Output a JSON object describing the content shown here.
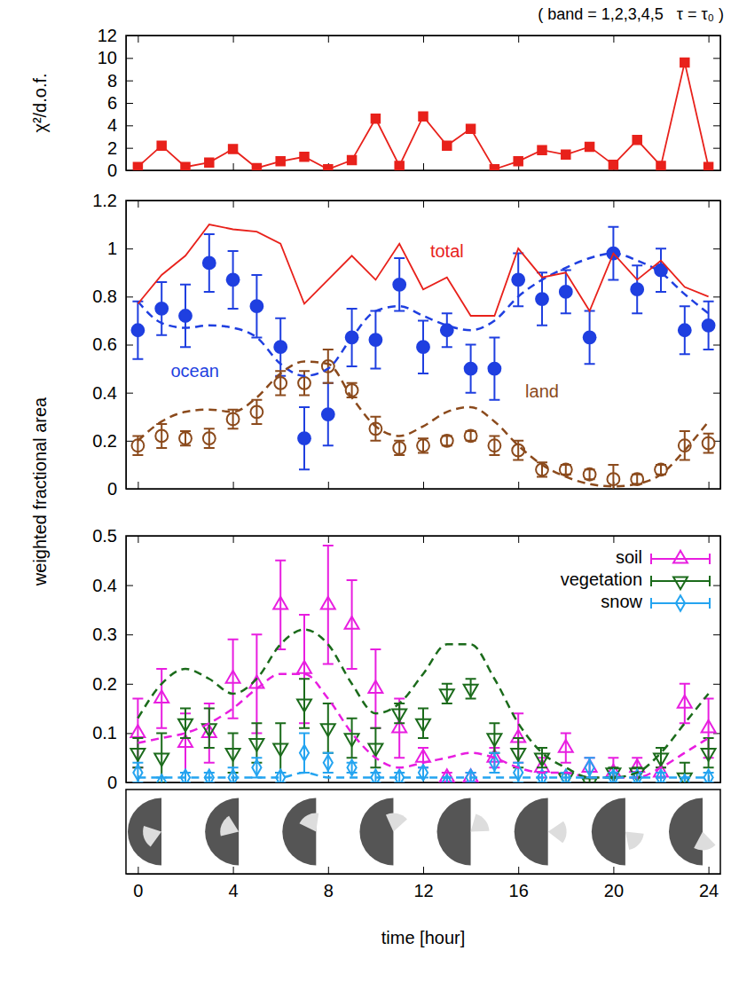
{
  "chart_data": [
    {
      "type": "line",
      "title": "( band = 1,2,3,4,5   τ = τ₀ )",
      "ylabel": "χ²/d.o.f.",
      "x": [
        0,
        1,
        2,
        3,
        4,
        5,
        6,
        7,
        8,
        9,
        10,
        11,
        12,
        13,
        14,
        15,
        16,
        17,
        18,
        19,
        20,
        21,
        22,
        23,
        24
      ],
      "xlim": [
        -0.5,
        24.5
      ],
      "xticks": [
        0,
        4,
        8,
        12,
        16,
        20,
        24
      ],
      "ylim": [
        0,
        12
      ],
      "yticks": [
        0,
        2,
        4,
        6,
        8,
        10,
        12
      ],
      "tick_labels": "y",
      "grid": false,
      "series": [
        {
          "color": "#e8211b",
          "marker": "square",
          "line_style": "solid",
          "values": [
            0.3,
            2.2,
            0.3,
            0.7,
            1.9,
            0.2,
            0.8,
            1.2,
            0.1,
            0.9,
            4.6,
            0.4,
            4.8,
            2.2,
            3.7,
            0.1,
            0.8,
            1.8,
            1.4,
            2.1,
            0.5,
            2.7,
            0.4,
            9.6,
            0.3
          ]
        }
      ]
    },
    {
      "type": "line",
      "ylabel": "weighted fractional area",
      "x": [
        0,
        1,
        2,
        3,
        4,
        5,
        6,
        7,
        8,
        9,
        10,
        11,
        12,
        13,
        14,
        15,
        16,
        17,
        18,
        19,
        20,
        21,
        22,
        23,
        24
      ],
      "xlim": [
        -0.5,
        24.5
      ],
      "xticks": [
        0,
        4,
        8,
        12,
        16,
        20,
        24
      ],
      "ylim": [
        0,
        1.2
      ],
      "yticks": [
        0,
        0.2,
        0.4,
        0.6,
        0.8,
        1,
        1.2
      ],
      "tick_labels": "y",
      "grid": false,
      "series": [
        {
          "type": "scatter",
          "color": "#1f3fe0",
          "marker": "circle",
          "line_style": "none",
          "values": [
            0.66,
            0.75,
            0.72,
            0.94,
            0.87,
            0.76,
            0.59,
            0.21,
            0.31,
            0.63,
            0.62,
            0.85,
            0.59,
            0.66,
            0.5,
            0.5,
            0.87,
            0.79,
            0.82,
            0.63,
            0.98,
            0.83,
            0.91,
            0.66,
            0.68
          ],
          "error": [
            0.12,
            0.11,
            0.13,
            0.12,
            0.12,
            0.13,
            0.12,
            0.13,
            0.13,
            0.12,
            0.12,
            0.11,
            0.11,
            0.07,
            0.1,
            0.13,
            0.11,
            0.11,
            0.09,
            0.11,
            0.11,
            0.1,
            0.09,
            0.1,
            0.1
          ]
        },
        {
          "type": "scatter",
          "color": "#8b4a1c",
          "marker": "open-circle",
          "line_style": "none",
          "values": [
            0.18,
            0.22,
            0.21,
            0.21,
            0.29,
            0.32,
            0.44,
            0.44,
            0.51,
            0.41,
            0.25,
            0.17,
            0.18,
            0.2,
            0.22,
            0.18,
            0.16,
            0.08,
            0.08,
            0.06,
            0.04,
            0.04,
            0.08,
            0.18,
            0.19
          ],
          "error": [
            0.04,
            0.05,
            0.03,
            0.04,
            0.04,
            0.05,
            0.05,
            0.05,
            0.07,
            0.03,
            0.05,
            0.03,
            0.03,
            0.02,
            0.02,
            0.04,
            0.04,
            0.03,
            0.02,
            0.02,
            0.06,
            0.02,
            0.02,
            0.06,
            0.04
          ]
        },
        {
          "type": "line",
          "color": "#1f3fe0",
          "line_style": "dashed",
          "values": [
            0.78,
            0.69,
            0.67,
            0.68,
            0.67,
            0.63,
            0.52,
            0.47,
            0.5,
            0.63,
            0.74,
            0.76,
            0.72,
            0.68,
            0.66,
            0.7,
            0.8,
            0.87,
            0.92,
            0.96,
            0.98,
            0.95,
            0.9,
            0.81,
            0.73
          ]
        },
        {
          "type": "line",
          "color": "#8b4a1c",
          "line_style": "dashed",
          "values": [
            0.2,
            0.28,
            0.32,
            0.33,
            0.32,
            0.38,
            0.48,
            0.53,
            0.52,
            0.38,
            0.26,
            0.22,
            0.26,
            0.32,
            0.34,
            0.28,
            0.18,
            0.1,
            0.05,
            0.02,
            0.01,
            0.02,
            0.06,
            0.16,
            0.28
          ]
        },
        {
          "type": "line",
          "color": "#e8211b",
          "line_style": "solid",
          "values": [
            0.77,
            0.89,
            0.97,
            1.1,
            1.08,
            1.07,
            1.02,
            0.77,
            0.87,
            0.97,
            0.87,
            1.02,
            0.83,
            0.88,
            0.72,
            0.72,
            1.0,
            0.88,
            0.9,
            0.74,
            0.98,
            0.87,
            0.95,
            0.84,
            0.8
          ]
        }
      ],
      "annotations": [
        {
          "text": "total",
          "x": 13.0,
          "y": 0.985,
          "color": "#e8211b"
        },
        {
          "text": "ocean",
          "x": 2.4,
          "y": 0.485,
          "color": "#1f3fe0"
        },
        {
          "text": "land",
          "x": 17.0,
          "y": 0.4,
          "color": "#8b4a1c"
        }
      ]
    },
    {
      "type": "line",
      "xlabel": "time [hour]",
      "x": [
        0,
        1,
        2,
        3,
        4,
        5,
        6,
        7,
        8,
        9,
        10,
        11,
        12,
        13,
        14,
        15,
        16,
        17,
        18,
        19,
        20,
        21,
        22,
        23,
        24
      ],
      "xlim": [
        -0.5,
        24.5
      ],
      "xticks": [
        0,
        4,
        8,
        12,
        16,
        20,
        24
      ],
      "ylim": [
        0,
        0.5
      ],
      "yticks": [
        0,
        0.1,
        0.2,
        0.3,
        0.4,
        0.5
      ],
      "legend": "top-right",
      "grid": false,
      "series": [
        {
          "name": "soil",
          "type": "scatter",
          "color": "#e81ee0",
          "marker": "triangle-up",
          "line_style": "none",
          "values": [
            0.1,
            0.17,
            0.08,
            0.1,
            0.21,
            0.2,
            0.36,
            0.23,
            0.36,
            0.32,
            0.19,
            0.11,
            0.05,
            0.01,
            0.01,
            0.05,
            0.09,
            0.03,
            0.07,
            0.03,
            0.02,
            0.03,
            0.02,
            0.16,
            0.11
          ],
          "error": [
            0.07,
            0.06,
            0.06,
            0.06,
            0.08,
            0.1,
            0.09,
            0.11,
            0.12,
            0.09,
            0.08,
            0.06,
            0.02,
            0.01,
            0.01,
            0.02,
            0.05,
            0.02,
            0.03,
            0.02,
            0.03,
            0.02,
            0.01,
            0.04,
            0.06
          ]
        },
        {
          "name": "vegetation",
          "type": "scatter",
          "color": "#1b6b1b",
          "marker": "triangle-down",
          "line_style": "none",
          "values": [
            0.06,
            0.05,
            0.12,
            0.11,
            0.06,
            0.08,
            0.07,
            0.16,
            0.11,
            0.09,
            0.07,
            0.14,
            0.12,
            0.18,
            0.19,
            0.09,
            0.06,
            0.05,
            0.01,
            0.0,
            0.02,
            0.02,
            0.05,
            0.01,
            0.06
          ],
          "error": [
            0.03,
            0.05,
            0.03,
            0.04,
            0.04,
            0.04,
            0.05,
            0.05,
            0.05,
            0.04,
            0.04,
            0.02,
            0.03,
            0.02,
            0.02,
            0.03,
            0.03,
            0.02,
            0.01,
            0.01,
            0.01,
            0.01,
            0.02,
            0.03,
            0.03
          ]
        },
        {
          "name": "snow",
          "type": "scatter",
          "color": "#24a4f0",
          "marker": "diamond",
          "line_style": "none",
          "values": [
            0.02,
            0.0,
            0.01,
            0.01,
            0.01,
            0.03,
            0.01,
            0.06,
            0.04,
            0.03,
            0.01,
            0.01,
            0.02,
            0.0,
            0.01,
            0.04,
            0.02,
            0.01,
            0.01,
            0.03,
            0.01,
            0.01,
            0.01,
            0.0,
            0.01
          ],
          "error": [
            0.02,
            0.01,
            0.01,
            0.01,
            0.02,
            0.02,
            0.01,
            0.04,
            0.02,
            0.01,
            0.01,
            0.01,
            0.01,
            0.01,
            0.01,
            0.02,
            0.02,
            0.01,
            0.01,
            0.02,
            0.01,
            0.01,
            0.01,
            0.01,
            0.01
          ]
        },
        {
          "type": "line",
          "color": "#e81ee0",
          "line_style": "dashed",
          "values": [
            0.08,
            0.09,
            0.1,
            0.12,
            0.15,
            0.19,
            0.22,
            0.22,
            0.17,
            0.1,
            0.05,
            0.03,
            0.04,
            0.05,
            0.06,
            0.05,
            0.03,
            0.02,
            0.02,
            0.01,
            0.01,
            0.01,
            0.03,
            0.06,
            0.09
          ]
        },
        {
          "type": "line",
          "color": "#1b6b1b",
          "line_style": "dashed",
          "values": [
            0.13,
            0.2,
            0.23,
            0.21,
            0.18,
            0.21,
            0.28,
            0.31,
            0.28,
            0.2,
            0.14,
            0.16,
            0.22,
            0.28,
            0.28,
            0.21,
            0.12,
            0.06,
            0.03,
            0.01,
            0.01,
            0.02,
            0.06,
            0.12,
            0.18
          ]
        },
        {
          "type": "line",
          "color": "#24a4f0",
          "line_style": "dashed",
          "values": [
            0.01,
            0.01,
            0.01,
            0.01,
            0.01,
            0.01,
            0.01,
            0.02,
            0.01,
            0.01,
            0.01,
            0.01,
            0.01,
            0.01,
            0.01,
            0.01,
            0.01,
            0.01,
            0.01,
            0.01,
            0.01,
            0.01,
            0.01,
            0.01,
            0.01
          ]
        }
      ]
    }
  ]
}
